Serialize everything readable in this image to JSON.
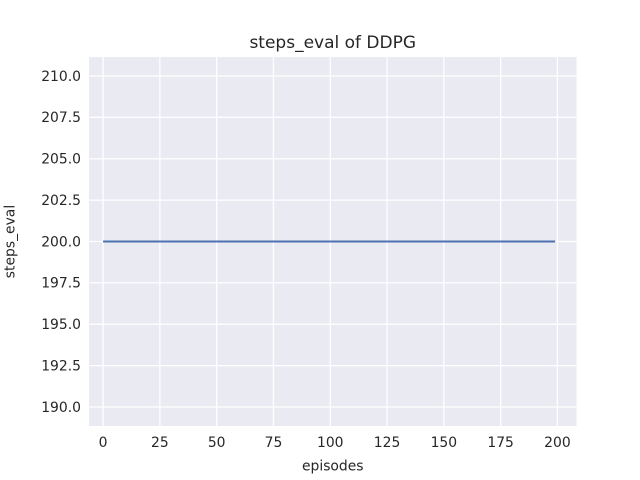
{
  "chart_data": {
    "type": "line",
    "title": "steps_eval of DDPG",
    "xlabel": "episodes",
    "ylabel": "steps_eval",
    "x_ticks": {
      "values": [
        0,
        25,
        50,
        75,
        100,
        125,
        150,
        175,
        200
      ],
      "labels": [
        "0",
        "25",
        "50",
        "75",
        "100",
        "125",
        "150",
        "175",
        "200"
      ]
    },
    "y_ticks": {
      "values": [
        190.0,
        192.5,
        195.0,
        197.5,
        200.0,
        202.5,
        205.0,
        207.5,
        210.0
      ],
      "labels": [
        "190.0",
        "192.5",
        "195.0",
        "197.5",
        "200.0",
        "202.5",
        "205.0",
        "207.5",
        "210.0"
      ]
    },
    "xlim": [
      -6.2,
      208.4
    ],
    "ylim": [
      188.85,
      211.15
    ],
    "grid": true,
    "legend": false,
    "series": [
      {
        "name": "DDPG",
        "color": "#4c72b0",
        "x": [
          0,
          199
        ],
        "values": [
          200,
          200
        ]
      }
    ],
    "style": {
      "figure_background": "#ffffff",
      "axes_background": "#eaeaf2",
      "grid_color": "#ffffff",
      "text_color": "#262626",
      "line_width": 2.1,
      "grid_width": 1.3
    }
  }
}
